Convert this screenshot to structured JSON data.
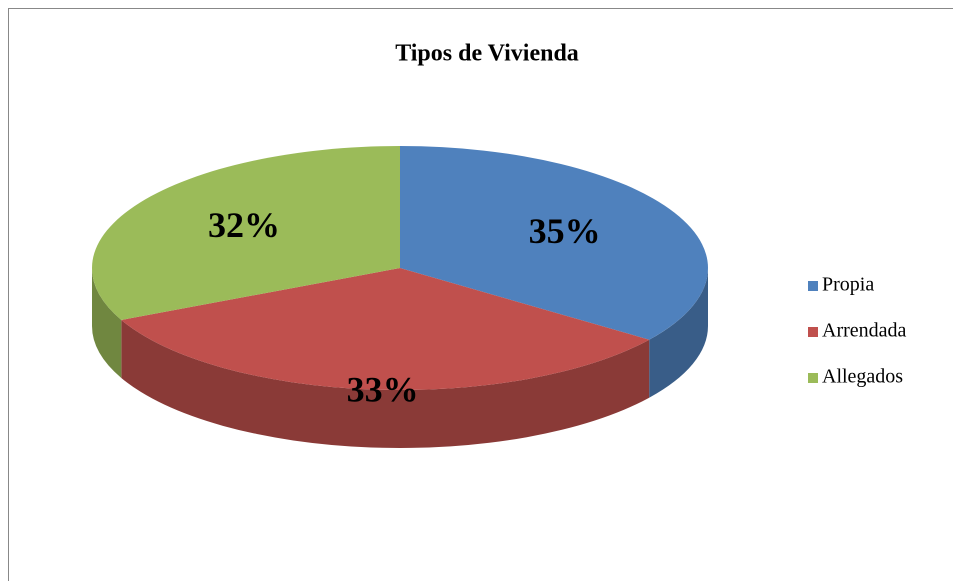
{
  "chart_data": {
    "type": "pie",
    "title": "Tipos de Vivienda",
    "categories": [
      "Propia",
      "Arrendada",
      "Allegados"
    ],
    "values": [
      35,
      33,
      32
    ],
    "value_labels": [
      "35%",
      "33%",
      "32%"
    ],
    "colors": [
      "#4f81bd",
      "#c0504d",
      "#9bbb59"
    ],
    "legend": "right"
  }
}
